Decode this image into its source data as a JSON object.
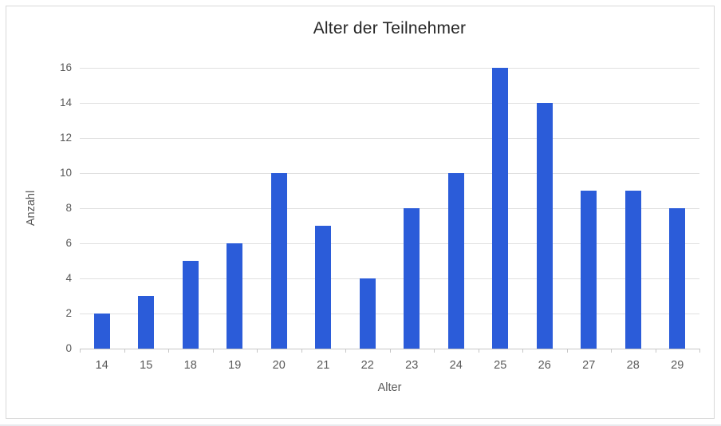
{
  "chart_data": {
    "type": "bar",
    "title": "Alter der Teilnehmer",
    "xlabel": "Alter",
    "ylabel": "Anzahl",
    "categories": [
      "14",
      "15",
      "18",
      "19",
      "20",
      "21",
      "22",
      "23",
      "24",
      "25",
      "26",
      "27",
      "28",
      "29"
    ],
    "values": [
      2,
      3,
      5,
      6,
      10,
      7,
      4,
      8,
      10,
      16,
      14,
      9,
      9,
      8
    ],
    "ylim": [
      0,
      16
    ],
    "ytick_step": 2,
    "ytick_labels": [
      "0",
      "2",
      "4",
      "6",
      "8",
      "10",
      "12",
      "14",
      "16"
    ],
    "grid": true,
    "legend_position": "none",
    "colors": {
      "bar": "#2b5cd9",
      "gridline": "#e0e0e0",
      "axis_line": "#c6c6c6",
      "tick_label": "#595959",
      "title": "#262626",
      "frame_border": "#d8d8d8"
    }
  }
}
